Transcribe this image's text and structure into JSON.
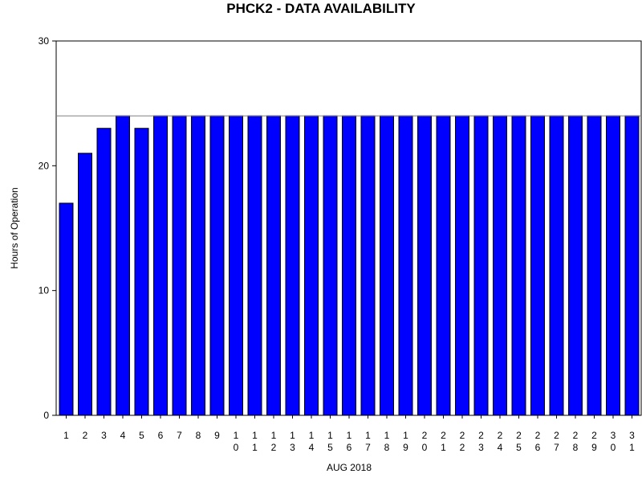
{
  "chart_data": {
    "type": "bar",
    "title": "PHCK2 - DATA AVAILABILITY",
    "xlabel": "AUG 2018",
    "ylabel": "Hours of Operation",
    "categories": [
      "1",
      "2",
      "3",
      "4",
      "5",
      "6",
      "7",
      "8",
      "9",
      "10",
      "11",
      "12",
      "13",
      "14",
      "15",
      "16",
      "17",
      "18",
      "19",
      "20",
      "21",
      "22",
      "23",
      "24",
      "25",
      "26",
      "27",
      "28",
      "29",
      "30",
      "31"
    ],
    "values": [
      17,
      21,
      23,
      24,
      23,
      24,
      24,
      24,
      24,
      24,
      24,
      24,
      24,
      24,
      24,
      24,
      24,
      24,
      24,
      24,
      24,
      24,
      24,
      24,
      24,
      24,
      24,
      24,
      24,
      24,
      24
    ],
    "ylim": [
      0,
      30
    ],
    "yticks": [
      "0",
      "10",
      "20",
      "30"
    ],
    "reference_line": 24,
    "grid": false,
    "legend": "none",
    "colors": {
      "bar_fill": "#0000ff",
      "bar_stroke": "#000000",
      "reference_line": "#808080",
      "axis": "#000000"
    }
  }
}
